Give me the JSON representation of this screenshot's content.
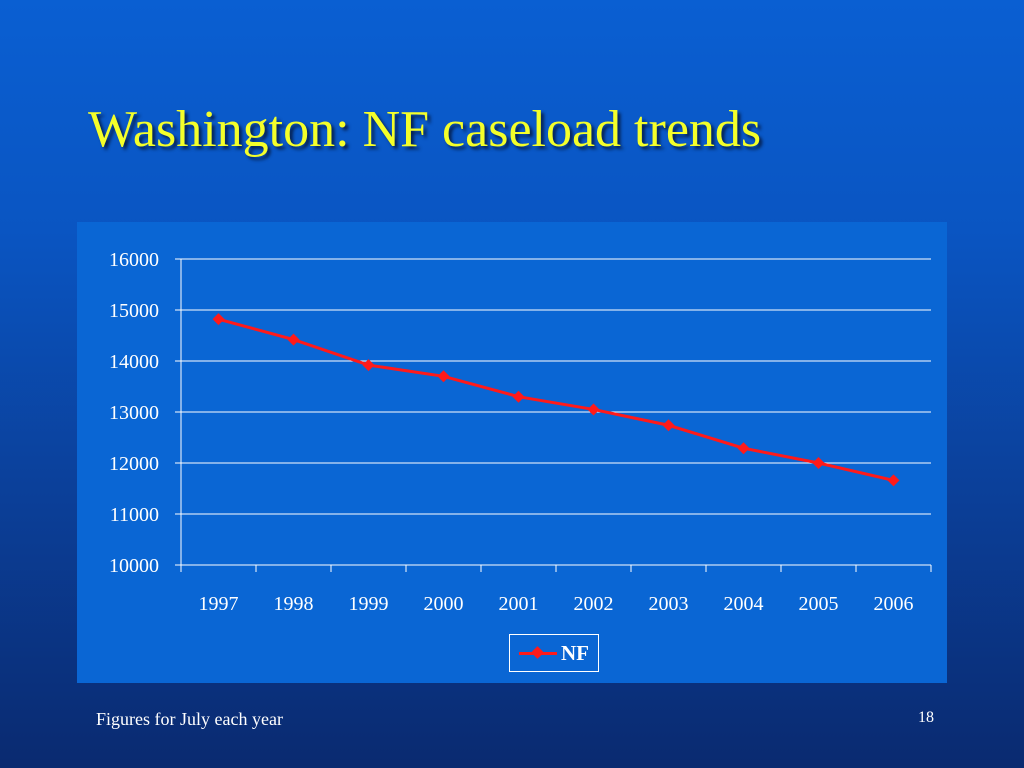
{
  "slide": {
    "title": "Washington: NF caseload trends",
    "footnote": "Figures for July each year",
    "page_number": "18"
  },
  "colors": {
    "background": "#0a55c2",
    "chart_panel": "#0a66d4",
    "title": "#f4ff2a",
    "series_line": "#ff1a1a",
    "axis_text": "#ffffff"
  },
  "chart_data": {
    "type": "line",
    "title": "",
    "xlabel": "",
    "ylabel": "",
    "categories": [
      "1997",
      "1998",
      "1999",
      "2000",
      "2001",
      "2002",
      "2003",
      "2004",
      "2005",
      "2006"
    ],
    "series": [
      {
        "name": "NF",
        "values": [
          14820,
          14420,
          13920,
          13700,
          13300,
          13050,
          12740,
          12290,
          12000,
          11660
        ]
      }
    ],
    "ylim": [
      10000,
      16000
    ],
    "yticks": [
      "10000",
      "11000",
      "12000",
      "13000",
      "14000",
      "15000",
      "16000"
    ],
    "grid": true,
    "legend": "bottom",
    "marker": "diamond"
  }
}
